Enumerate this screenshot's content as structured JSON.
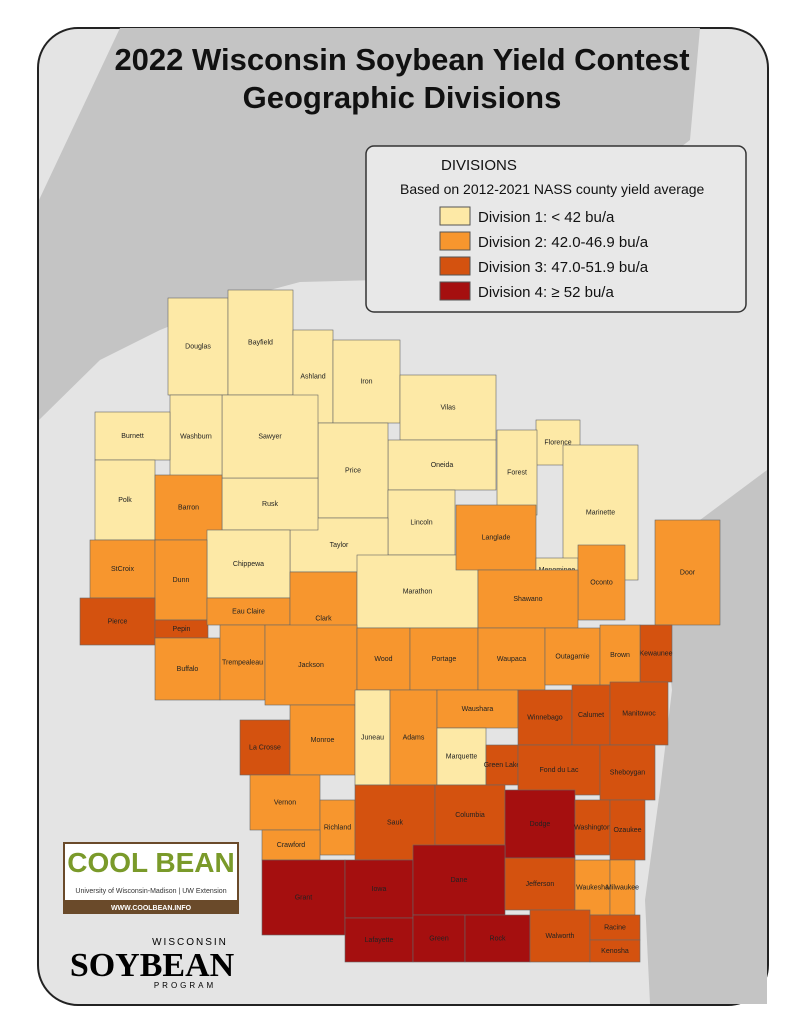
{
  "title_lines": [
    "2022 Wisconsin Soybean Yield Contest",
    "Geographic Divisions"
  ],
  "legend": {
    "title": "DIVISIONS",
    "subtitle": "Based on 2012-2021 NASS county yield average",
    "divisions": [
      {
        "label": "Division 1: < 42 bu/a",
        "color": "#fde9a6"
      },
      {
        "label": "Division 2: 42.0-46.9 bu/a",
        "color": "#f7962e"
      },
      {
        "label": "Division 3: 47.0-51.9 bu/a",
        "color": "#d4520f"
      },
      {
        "label": "Division 4: ≥ 52 bu/a",
        "color": "#a50f0f"
      }
    ]
  },
  "counties": [
    {
      "name": "Douglas",
      "division": 1
    },
    {
      "name": "Bayfield",
      "division": 1
    },
    {
      "name": "Ashland",
      "division": 1
    },
    {
      "name": "Iron",
      "division": 1
    },
    {
      "name": "Vilas",
      "division": 1
    },
    {
      "name": "Florence",
      "division": 1
    },
    {
      "name": "Forest",
      "division": 1
    },
    {
      "name": "Marinette",
      "division": 1
    },
    {
      "name": "Oneida",
      "division": 1
    },
    {
      "name": "Price",
      "division": 1
    },
    {
      "name": "Lincoln",
      "division": 1
    },
    {
      "name": "Taylor",
      "division": 1
    },
    {
      "name": "Rusk",
      "division": 1
    },
    {
      "name": "Sawyer",
      "division": 1
    },
    {
      "name": "Washburn",
      "division": 1
    },
    {
      "name": "Burnett",
      "division": 1
    },
    {
      "name": "Polk",
      "division": 1
    },
    {
      "name": "Barron",
      "division": 2
    },
    {
      "name": "Chippewa",
      "division": 1
    },
    {
      "name": "StCroix",
      "division": 2
    },
    {
      "name": "Dunn",
      "division": 2
    },
    {
      "name": "Pierce",
      "division": 3
    },
    {
      "name": "Pepin",
      "division": 3
    },
    {
      "name": "Eau Claire",
      "division": 2
    },
    {
      "name": "Clark",
      "division": 2
    },
    {
      "name": "Marathon",
      "division": 1
    },
    {
      "name": "Langlade",
      "division": 2
    },
    {
      "name": "Menominee",
      "division": 1
    },
    {
      "name": "Oconto",
      "division": 2
    },
    {
      "name": "Shawano",
      "division": 2
    },
    {
      "name": "Door",
      "division": 2
    },
    {
      "name": "Kewaunee",
      "division": 3
    },
    {
      "name": "Buffalo",
      "division": 2
    },
    {
      "name": "Trempealeau",
      "division": 2
    },
    {
      "name": "Jackson",
      "division": 2
    },
    {
      "name": "Wood",
      "division": 2
    },
    {
      "name": "Portage",
      "division": 2
    },
    {
      "name": "Waupaca",
      "division": 2
    },
    {
      "name": "Outagamie",
      "division": 2
    },
    {
      "name": "Brown",
      "division": 2
    },
    {
      "name": "La Crosse",
      "division": 3
    },
    {
      "name": "Monroe",
      "division": 2
    },
    {
      "name": "Juneau",
      "division": 1
    },
    {
      "name": "Adams",
      "division": 2
    },
    {
      "name": "Waushara",
      "division": 2
    },
    {
      "name": "Marquette",
      "division": 1
    },
    {
      "name": "Winnebago",
      "division": 3
    },
    {
      "name": "Calumet",
      "division": 3
    },
    {
      "name": "Manitowoc",
      "division": 3
    },
    {
      "name": "Green Lake",
      "division": 3
    },
    {
      "name": "Fond du Lac",
      "division": 3
    },
    {
      "name": "Sheboygan",
      "division": 3
    },
    {
      "name": "Vernon",
      "division": 2
    },
    {
      "name": "Richland",
      "division": 2
    },
    {
      "name": "Sauk",
      "division": 3
    },
    {
      "name": "Columbia",
      "division": 3
    },
    {
      "name": "Dodge",
      "division": 4
    },
    {
      "name": "Washington",
      "division": 3
    },
    {
      "name": "Ozaukee",
      "division": 3
    },
    {
      "name": "Crawford",
      "division": 2
    },
    {
      "name": "Grant",
      "division": 4
    },
    {
      "name": "Iowa",
      "division": 4
    },
    {
      "name": "Dane",
      "division": 4
    },
    {
      "name": "Jefferson",
      "division": 3
    },
    {
      "name": "Waukesha",
      "division": 2
    },
    {
      "name": "Milwaukee",
      "division": 2
    },
    {
      "name": "Lafayette",
      "division": 4
    },
    {
      "name": "Green",
      "division": 4
    },
    {
      "name": "Rock",
      "division": 4
    },
    {
      "name": "Walworth",
      "division": 3
    },
    {
      "name": "Racine",
      "division": 3
    },
    {
      "name": "Kenosha",
      "division": 3
    }
  ],
  "logos": {
    "coolbean": {
      "name": "COOL BEAN",
      "tagline": "University of Wisconsin-Madison | UW Extension",
      "url": "WWW.COOLBEAN.INFO"
    },
    "soybean": {
      "top": "WISCONSIN",
      "name": "SOYBEAN",
      "bottom": "PROGRAM"
    }
  }
}
